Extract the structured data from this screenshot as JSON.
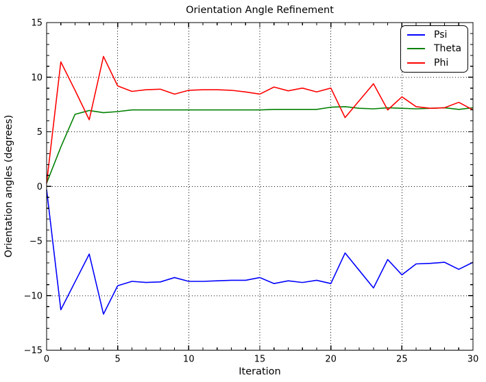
{
  "chart_data": {
    "type": "line",
    "title": "Orientation Angle Refinement",
    "xlabel": "Iteration",
    "ylabel": "Orientation angles (degrees)",
    "xlim": [
      0,
      30
    ],
    "ylim": [
      -15,
      15
    ],
    "xticks": [
      0,
      5,
      10,
      15,
      20,
      25,
      30
    ],
    "yticks": [
      -15,
      -10,
      -5,
      0,
      5,
      10,
      15
    ],
    "minor_tick_step": 1,
    "grid": "dotted",
    "legend_position": "upper right",
    "x": [
      0,
      1,
      2,
      3,
      4,
      5,
      6,
      7,
      8,
      9,
      10,
      11,
      12,
      13,
      14,
      15,
      16,
      17,
      18,
      19,
      20,
      21,
      22,
      23,
      24,
      25,
      26,
      27,
      28,
      29,
      30
    ],
    "series": [
      {
        "name": "Psi",
        "color": "#0000ff",
        "values": [
          -0.3,
          -11.3,
          -8.75,
          -6.2,
          -11.7,
          -9.1,
          -8.7,
          -8.8,
          -8.75,
          -8.35,
          -8.7,
          -8.7,
          -8.65,
          -8.6,
          -8.6,
          -8.35,
          -8.9,
          -8.65,
          -8.8,
          -8.6,
          -8.9,
          -6.1,
          -7.7,
          -9.3,
          -6.7,
          -8.1,
          -7.1,
          -7.05,
          -6.95,
          -7.6,
          -6.95
        ]
      },
      {
        "name": "Theta",
        "color": "#008000",
        "values": [
          0.3,
          3.6,
          6.6,
          6.95,
          6.75,
          6.85,
          7.0,
          7.0,
          7.0,
          7.0,
          7.0,
          7.0,
          7.0,
          7.0,
          7.0,
          7.0,
          7.05,
          7.05,
          7.05,
          7.05,
          7.25,
          7.3,
          7.15,
          7.1,
          7.2,
          7.15,
          7.1,
          7.15,
          7.2,
          7.05,
          7.2
        ]
      },
      {
        "name": "Phi",
        "color": "#ff0000",
        "values": [
          0.3,
          11.4,
          8.8,
          6.1,
          11.9,
          9.2,
          8.7,
          8.85,
          8.9,
          8.45,
          8.8,
          8.85,
          8.85,
          8.8,
          8.65,
          8.45,
          9.1,
          8.75,
          9.0,
          8.65,
          9.0,
          6.3,
          7.85,
          9.4,
          7.0,
          8.2,
          7.3,
          7.15,
          7.2,
          7.7,
          7.0
        ]
      }
    ]
  }
}
